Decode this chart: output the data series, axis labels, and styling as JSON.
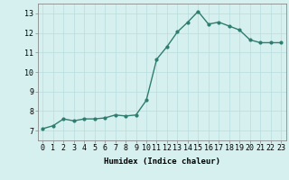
{
  "x": [
    0,
    1,
    2,
    3,
    4,
    5,
    6,
    7,
    8,
    9,
    10,
    11,
    12,
    13,
    14,
    15,
    16,
    17,
    18,
    19,
    20,
    21,
    22,
    23
  ],
  "y": [
    7.1,
    7.25,
    7.6,
    7.5,
    7.6,
    7.6,
    7.65,
    7.8,
    7.75,
    7.8,
    8.55,
    10.65,
    11.3,
    12.05,
    12.55,
    13.1,
    12.45,
    12.55,
    12.35,
    12.15,
    11.65,
    11.5,
    11.5,
    11.5
  ],
  "line_color": "#2e7d6e",
  "marker": "o",
  "markersize": 2.0,
  "linewidth": 1.0,
  "bg_color": "#d6f0f0",
  "grid_color": "#b8dcdc",
  "xlabel": "Humidex (Indice chaleur)",
  "xlim": [
    -0.5,
    23.5
  ],
  "ylim": [
    6.5,
    13.5
  ],
  "yticks": [
    7,
    8,
    9,
    10,
    11,
    12,
    13
  ],
  "xticks": [
    0,
    1,
    2,
    3,
    4,
    5,
    6,
    7,
    8,
    9,
    10,
    11,
    12,
    13,
    14,
    15,
    16,
    17,
    18,
    19,
    20,
    21,
    22,
    23
  ],
  "xlabel_fontsize": 6.5,
  "tick_fontsize": 6.0
}
